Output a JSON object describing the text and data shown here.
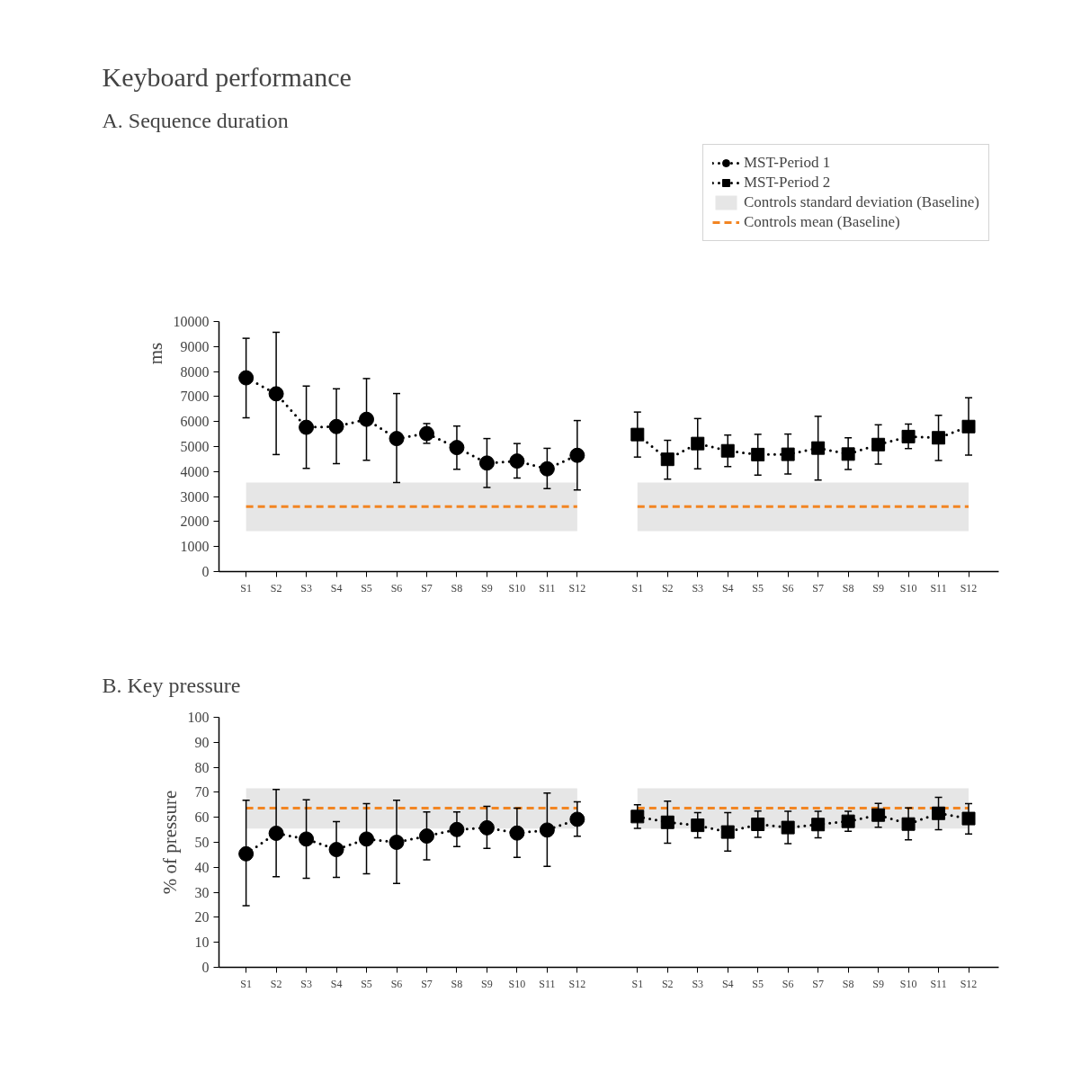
{
  "chart_data": [
    {
      "type": "line",
      "title": "Keyboard performance",
      "subtitle": "A. Sequence duration",
      "ylabel": "ms",
      "categories": [
        "S1",
        "S2",
        "S3",
        "S4",
        "S5",
        "S6",
        "S7",
        "S8",
        "S9",
        "S10",
        "S11",
        "S12",
        null,
        "S1",
        "S2",
        "S3",
        "S4",
        "S5",
        "S6",
        "S7",
        "S8",
        "S9",
        "S10",
        "S11",
        "S12"
      ],
      "series": [
        {
          "name": "MST-Period 1",
          "color": "#000000",
          "marker": "circle",
          "values": [
            7750,
            7110,
            5770,
            5800,
            6090,
            5320,
            5520,
            4960,
            4340,
            4420,
            4110,
            4650,
            null,
            null,
            null,
            null,
            null,
            null,
            null,
            null,
            null,
            null,
            null,
            null,
            null
          ],
          "errors": [
            [
              6150,
              9330
            ],
            [
              4680,
              9570
            ],
            [
              4130,
              7420
            ],
            [
              4320,
              7310
            ],
            [
              4450,
              7720
            ],
            [
              3560,
              7120
            ],
            [
              5130,
              5920
            ],
            [
              4090,
              5820
            ],
            [
              3360,
              5320
            ],
            [
              3740,
              5120
            ],
            [
              3320,
              4930
            ],
            [
              3260,
              6040
            ],
            null,
            null,
            null,
            null,
            null,
            null,
            null,
            null,
            null,
            null,
            null,
            null,
            null
          ]
        },
        {
          "name": "MST-Period 2",
          "color": "#000000",
          "marker": "square",
          "values": [
            null,
            null,
            null,
            null,
            null,
            null,
            null,
            null,
            null,
            null,
            null,
            null,
            null,
            5480,
            4490,
            5120,
            4830,
            4680,
            4690,
            4940,
            4700,
            5080,
            5400,
            5350,
            5800
          ],
          "errors": [
            null,
            null,
            null,
            null,
            null,
            null,
            null,
            null,
            null,
            null,
            null,
            null,
            null,
            [
              4580,
              6380
            ],
            [
              3700,
              5250
            ],
            [
              4110,
              6120
            ],
            [
              4200,
              5460
            ],
            [
              3860,
              5490
            ],
            [
              3900,
              5500
            ],
            [
              3660,
              6210
            ],
            [
              4080,
              5350
            ],
            [
              4300,
              5870
            ],
            [
              4920,
              5900
            ],
            [
              4440,
              6250
            ],
            [
              4660,
              6950
            ]
          ]
        }
      ],
      "ref_lines": [
        {
          "axis": "y",
          "value": 2600,
          "label": "Controls mean (Baseline)",
          "color": "#f28522",
          "line_style": "dashed"
        }
      ],
      "bands": [
        {
          "axis": "y",
          "from": 1620,
          "to": 3560,
          "label": "Controls standard deviation (Baseline)",
          "color": "#e6e6e6"
        },
        {
          "axis": "y",
          "from": 1620,
          "to": 3560,
          "color": "#e6e6e6"
        }
      ],
      "ylim": [
        0,
        10000
      ],
      "yticks": [
        0,
        1000,
        2000,
        3000,
        4000,
        5000,
        6000,
        7000,
        8000,
        9000,
        10000
      ],
      "grid": false,
      "legend": "top right",
      "line_style": "dotted"
    },
    {
      "type": "line",
      "title": "B. Key pressure",
      "ylabel": "% of pressure",
      "categories": [
        "S1",
        "S2",
        "S3",
        "S4",
        "S5",
        "S6",
        "S7",
        "S8",
        "S9",
        "S10",
        "S11",
        "S12",
        null,
        "S1",
        "S2",
        "S3",
        "S4",
        "S5",
        "S6",
        "S7",
        "S8",
        "S9",
        "S10",
        "S11",
        "S12"
      ],
      "series": [
        {
          "color": "#000000",
          "marker": "circle",
          "values": [
            45.4,
            53.6,
            51.3,
            47.1,
            51.3,
            50.0,
            52.5,
            55.1,
            55.8,
            53.7,
            54.9,
            59.2,
            null,
            null,
            null,
            null,
            null,
            null,
            null,
            null,
            null,
            null,
            null,
            null,
            null
          ],
          "errors": [
            [
              24.6,
              66.8
            ],
            [
              36.2,
              71.1
            ],
            [
              35.6,
              67.0
            ],
            [
              36.0,
              58.3
            ],
            [
              37.4,
              65.5
            ],
            [
              33.5,
              66.8
            ],
            [
              43.0,
              62.1
            ],
            [
              48.3,
              62.1
            ],
            [
              47.6,
              64.4
            ],
            [
              44.0,
              63.7
            ],
            [
              40.4,
              69.7
            ],
            [
              52.4,
              66.2
            ],
            null,
            null,
            null,
            null,
            null,
            null,
            null,
            null,
            null,
            null,
            null,
            null,
            null
          ]
        },
        {
          "color": "#000000",
          "marker": "square",
          "values": [
            null,
            null,
            null,
            null,
            null,
            null,
            null,
            null,
            null,
            null,
            null,
            null,
            null,
            60.3,
            58.0,
            56.8,
            54.1,
            57.2,
            55.9,
            57.1,
            58.4,
            60.9,
            57.3,
            61.6,
            59.5
          ],
          "errors": [
            null,
            null,
            null,
            null,
            null,
            null,
            null,
            null,
            null,
            null,
            null,
            null,
            null,
            [
              55.6,
              65.0
            ],
            [
              49.6,
              66.5
            ],
            [
              51.8,
              61.9
            ],
            [
              46.5,
              61.9
            ],
            [
              52.0,
              62.5
            ],
            [
              49.5,
              62.4
            ],
            [
              51.8,
              62.4
            ],
            [
              54.4,
              62.4
            ],
            [
              56.0,
              65.6
            ],
            [
              51.0,
              63.8
            ],
            [
              55.0,
              68.0
            ],
            [
              53.3,
              65.5
            ]
          ]
        }
      ],
      "ref_lines": [
        {
          "axis": "y",
          "value": 63.7,
          "color": "#f28522",
          "line_style": "dashed"
        }
      ],
      "bands": [
        {
          "axis": "y",
          "from": 55.5,
          "to": 71.6,
          "color": "#e6e6e6"
        },
        {
          "axis": "y",
          "from": 55.5,
          "to": 71.6,
          "color": "#e6e6e6"
        }
      ],
      "ylim": [
        0,
        100
      ],
      "yticks": [
        0,
        10,
        20,
        30,
        40,
        50,
        60,
        70,
        80,
        90,
        100
      ],
      "grid": false,
      "line_style": "dotted"
    }
  ]
}
